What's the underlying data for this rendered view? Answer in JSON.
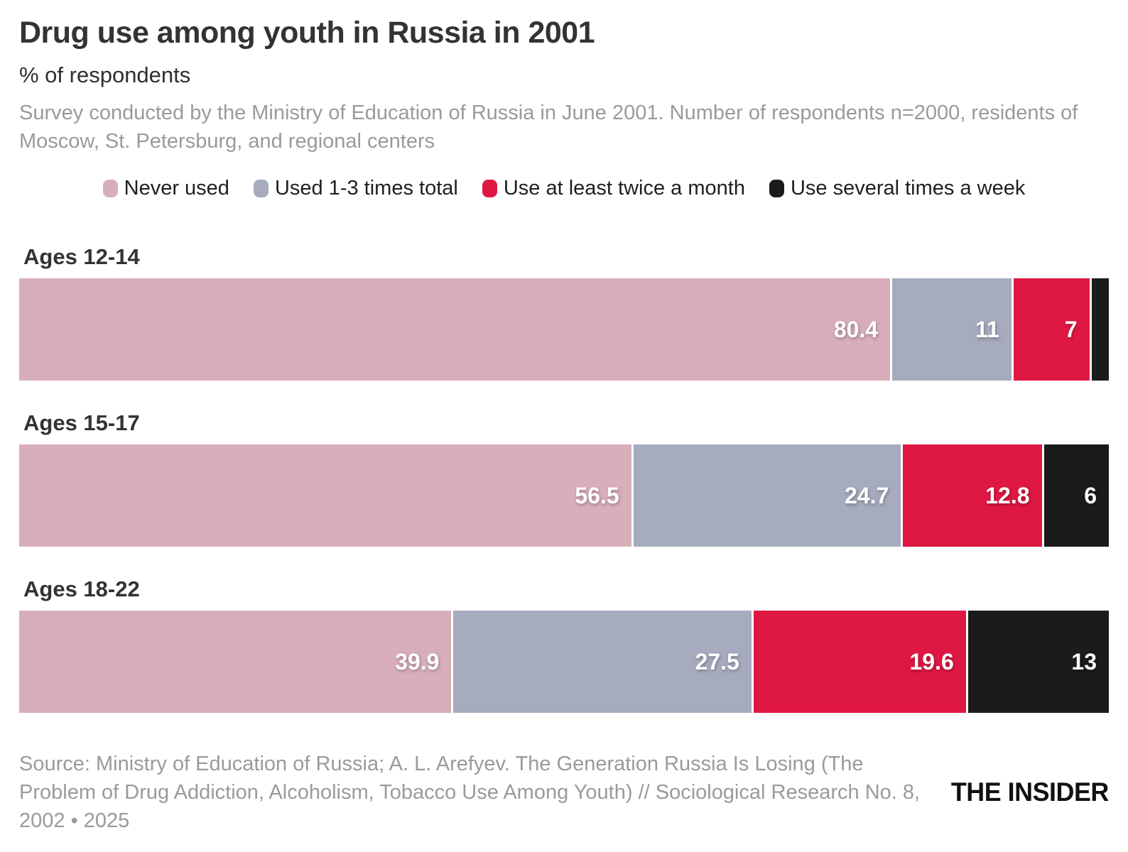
{
  "header": {
    "title": "Drug use among youth in Russia in 2001",
    "subtitle": "% of respondents",
    "description": "Survey conducted by the Ministry of Education of Russia in June 2001. Number of respondents n=2000, residents of Moscow, St. Petersburg, and regional centers"
  },
  "chart_data": {
    "type": "bar",
    "stacked": true,
    "orientation": "horizontal",
    "unit": "%",
    "xlim": [
      0,
      100
    ],
    "grid": false,
    "legend_position": "top",
    "label_min_pct": 3,
    "value_label_color": "#ffffff",
    "categories": [
      "Ages 12-14",
      "Ages 15-17",
      "Ages 18-22"
    ],
    "series": [
      {
        "name": "Never used",
        "color": "#d9aebb",
        "values": [
          80.4,
          56.5,
          39.9
        ]
      },
      {
        "name": "Used 1-3 times total",
        "color": "#a6abbe",
        "values": [
          11,
          24.7,
          27.5
        ]
      },
      {
        "name": "Use at least twice a month",
        "color": "#df1843",
        "values": [
          7,
          12.8,
          19.6
        ]
      },
      {
        "name": "Use several times a week",
        "color": "#1b1b1b",
        "values": [
          1.6,
          6,
          13
        ]
      }
    ]
  },
  "footer": {
    "source": "Source: Ministry of Education of Russia; A. L. Arefyev. The Generation Russia Is Losing (The Problem of Drug Addiction, Alcoholism, Tobacco Use Among Youth) // Sociological Research No. 8, 2002 • 2025",
    "brand": "THE INSIDER"
  }
}
